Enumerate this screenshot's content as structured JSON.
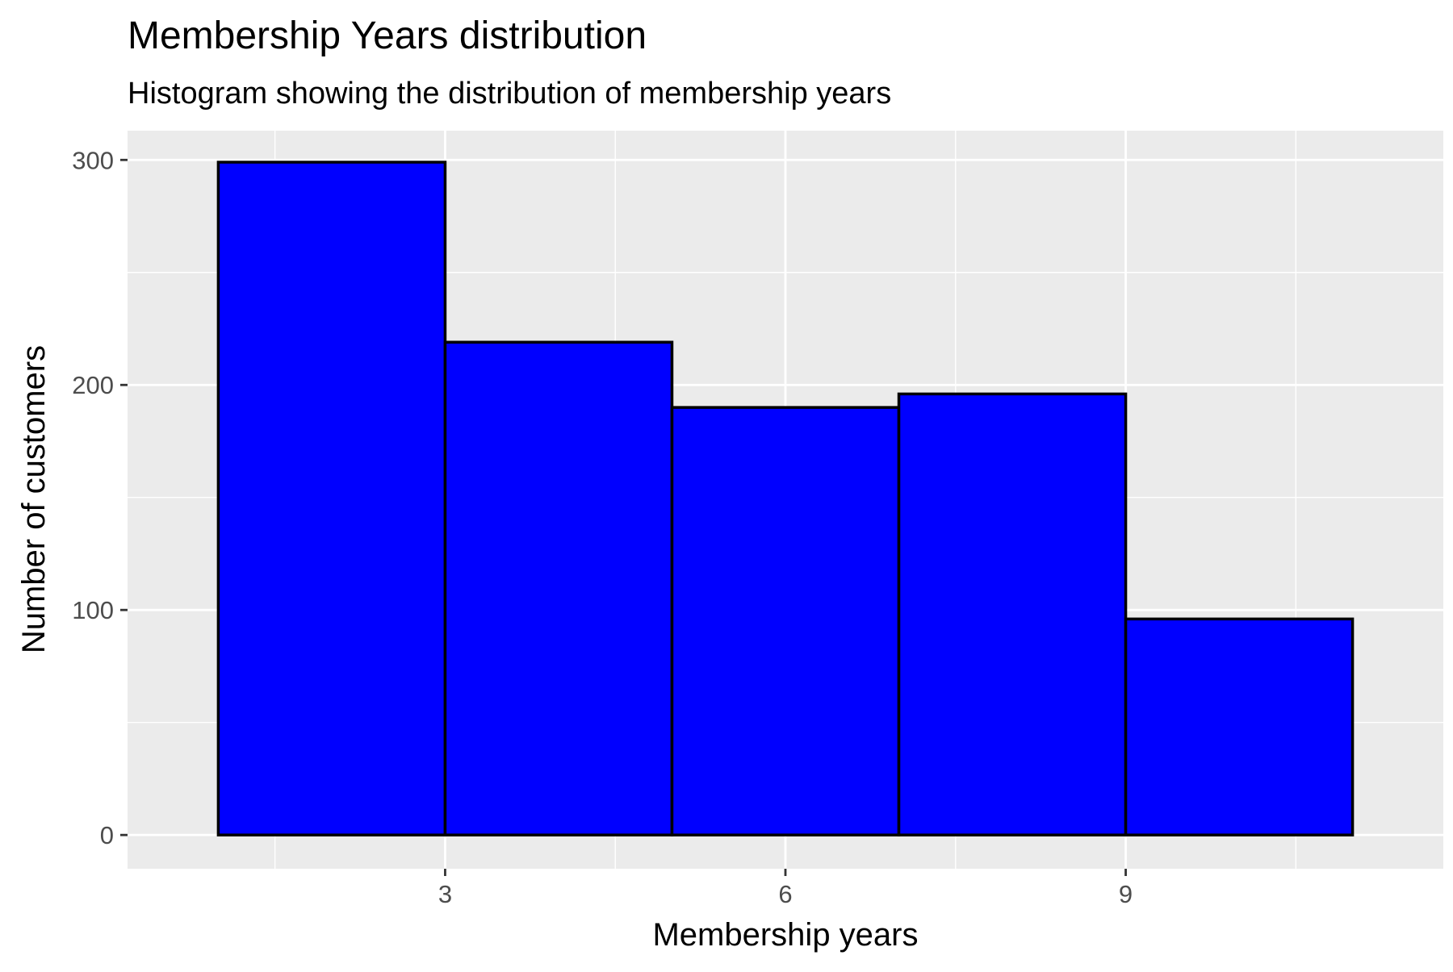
{
  "chart_data": {
    "type": "bar",
    "histogram": true,
    "title": "Membership Years distribution",
    "subtitle": "Histogram showing the distribution of membership years",
    "xlabel": "Membership years",
    "ylabel": "Number of customers",
    "bins": [
      {
        "start": 1,
        "end": 3,
        "count": 299
      },
      {
        "start": 3,
        "end": 5,
        "count": 219
      },
      {
        "start": 5,
        "end": 7,
        "count": 190
      },
      {
        "start": 7,
        "end": 9,
        "count": 196
      },
      {
        "start": 9,
        "end": 11,
        "count": 96
      }
    ],
    "xlim": [
      0.2,
      11.8
    ],
    "ylim": [
      -15,
      313
    ],
    "x_ticks": [
      3,
      6,
      9
    ],
    "x_minor_ticks": [
      1.5,
      4.5,
      7.5,
      10.5
    ],
    "y_ticks": [
      0,
      100,
      200,
      300
    ],
    "y_minor_ticks": [
      50,
      150,
      250
    ],
    "grid": true,
    "legend": "none",
    "colors": {
      "fill": "#0000ff",
      "stroke": "#000000",
      "panel": "#ebebeb",
      "grid": "#ffffff",
      "tick_text": "#4d4d4d"
    }
  }
}
